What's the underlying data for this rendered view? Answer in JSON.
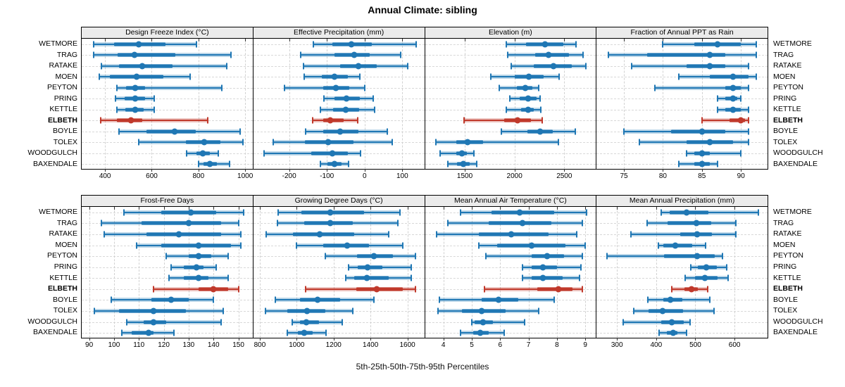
{
  "chart_data": {
    "type": "scatter",
    "subtype": "horizontal-percentile-interval-dotplot",
    "title": "Annual Climate: sibling",
    "caption": "5th-25th-50th-75th-95th Percentiles",
    "legend_note": "each row shows 5th/25th/50th/75th/95th percentiles; thin line = 5-95, thick bar = 25-75, dot = median",
    "sites_top_to_bottom": [
      "WETMORE",
      "TRAG",
      "RATAKE",
      "MOEN",
      "PEYTON",
      "PRING",
      "KETTLE",
      "ELBETH",
      "BOYLE",
      "TOLEX",
      "WOODGULCH",
      "BAXENDALE"
    ],
    "highlight_site": "ELBETH",
    "colors": {
      "series": "#1f77b4",
      "highlight": "#c0392b",
      "strip_bg": "#ebebeb",
      "gridline": "#d4d4d4",
      "panel_border": "#000000"
    },
    "grid": "dashed horizontal and vertical gridlines",
    "layout": "2 rows x 4 columns of panels, site labels on both left and right sides",
    "panels": [
      {
        "title": "Design Freeze Index (°C)",
        "xlim": [
          300,
          1035
        ],
        "ticks": [
          400,
          600,
          800,
          1000
        ],
        "values": [
          [
            350,
            440,
            545,
            660,
            790
          ],
          [
            350,
            455,
            525,
            700,
            940
          ],
          [
            385,
            460,
            560,
            690,
            920
          ],
          [
            375,
            420,
            535,
            650,
            765
          ],
          [
            450,
            490,
            530,
            570,
            900
          ],
          [
            445,
            485,
            530,
            570,
            610
          ],
          [
            450,
            487,
            530,
            565,
            612
          ],
          [
            380,
            450,
            510,
            560,
            840
          ],
          [
            460,
            577,
            697,
            788,
            977
          ],
          [
            545,
            745,
            825,
            895,
            990
          ],
          [
            748,
            793,
            820,
            848,
            885
          ],
          [
            800,
            823,
            848,
            878,
            932
          ]
        ]
      },
      {
        "title": "Effective Precipitation (mm)",
        "xlim": [
          -295,
          160
        ],
        "ticks": [
          -200,
          -100,
          0,
          100
        ],
        "values": [
          [
            -135,
            -86,
            -36,
            19,
            136
          ],
          [
            -170,
            -79,
            -28,
            14,
            95
          ],
          [
            -162,
            -65,
            -17,
            33,
            114
          ],
          [
            -160,
            -114,
            -79,
            -45,
            -12
          ],
          [
            -212,
            -109,
            -77,
            -41,
            0
          ],
          [
            -108,
            -80,
            -48,
            -12,
            22
          ],
          [
            -118,
            -83,
            -50,
            -14,
            27
          ],
          [
            -138,
            -110,
            -91,
            -55,
            -19
          ],
          [
            -157,
            -109,
            -65,
            -16,
            60
          ],
          [
            -243,
            -159,
            -96,
            -30,
            73
          ],
          [
            -267,
            -141,
            -85,
            -44,
            -11
          ],
          [
            -118,
            -98,
            -80,
            -62,
            -42
          ]
        ]
      },
      {
        "title": "Elevation (m)",
        "xlim": [
          1100,
          2825
        ],
        "ticks": [
          1500,
          2000,
          2500
        ],
        "values": [
          [
            1920,
            2115,
            2310,
            2490,
            2620
          ],
          [
            1930,
            2210,
            2340,
            2550,
            2690
          ],
          [
            1965,
            2190,
            2390,
            2575,
            2715
          ],
          [
            1760,
            2000,
            2145,
            2295,
            2445
          ],
          [
            1845,
            2025,
            2105,
            2180,
            2245
          ],
          [
            1955,
            2055,
            2135,
            2220,
            2255
          ],
          [
            1920,
            2065,
            2135,
            2190,
            2265
          ],
          [
            1495,
            1895,
            2030,
            2165,
            2275
          ],
          [
            1870,
            2130,
            2260,
            2385,
            2610
          ],
          [
            1210,
            1415,
            1525,
            1685,
            2440
          ],
          [
            1250,
            1415,
            1470,
            1520,
            1590
          ],
          [
            1330,
            1425,
            1485,
            1550,
            1620
          ]
        ]
      },
      {
        "title": "Fraction of Annual PPT as Rain",
        "xlim": [
          71.5,
          93.5
        ],
        "ticks": [
          75,
          80,
          85,
          90
        ],
        "values": [
          [
            80,
            84,
            87,
            90,
            92
          ],
          [
            73,
            78,
            86,
            88,
            92
          ],
          [
            76,
            83,
            86,
            88,
            91
          ],
          [
            82,
            86,
            89,
            91,
            92
          ],
          [
            79,
            88,
            89,
            90,
            91
          ],
          [
            87,
            88,
            89,
            89.5,
            90
          ],
          [
            87,
            88,
            89,
            90,
            91
          ],
          [
            85,
            88.5,
            90,
            90.5,
            91
          ],
          [
            75,
            81,
            85,
            88,
            91
          ],
          [
            77,
            83,
            86,
            89,
            91
          ],
          [
            83,
            84,
            85,
            86,
            90
          ],
          [
            82,
            84,
            85,
            86,
            87
          ]
        ]
      },
      {
        "title": "Frost-Free Days",
        "xlim": [
          87,
          156
        ],
        "ticks": [
          90,
          100,
          110,
          120,
          130,
          140,
          150
        ],
        "values": [
          [
            104,
            119,
            131,
            141,
            152
          ],
          [
            95,
            111,
            130,
            143,
            150
          ],
          [
            96,
            113,
            126,
            143,
            151
          ],
          [
            109,
            119,
            134,
            147,
            151
          ],
          [
            121,
            130,
            134,
            139,
            146
          ],
          [
            123,
            128,
            133,
            136,
            141
          ],
          [
            122,
            128,
            134,
            138,
            146
          ],
          [
            116,
            134,
            140,
            146,
            150
          ],
          [
            99,
            115,
            123,
            130,
            140
          ],
          [
            92,
            102,
            116,
            129,
            144
          ],
          [
            105,
            112,
            116,
            121,
            143
          ],
          [
            103,
            107,
            114,
            116,
            124
          ]
        ]
      },
      {
        "title": "Growing Degree Days (°C)",
        "xlim": [
          765,
          1695
        ],
        "ticks": [
          800,
          1000,
          1200,
          1400,
          1600
        ],
        "values": [
          [
            900,
            1025,
            1180,
            1365,
            1560
          ],
          [
            895,
            1040,
            1180,
            1305,
            1550
          ],
          [
            835,
            980,
            1125,
            1310,
            1500
          ],
          [
            1000,
            1145,
            1275,
            1390,
            1575
          ],
          [
            1155,
            1325,
            1420,
            1520,
            1645
          ],
          [
            1280,
            1330,
            1385,
            1465,
            1620
          ],
          [
            1265,
            1312,
            1380,
            1500,
            1620
          ],
          [
            1050,
            1323,
            1435,
            1575,
            1645
          ],
          [
            885,
            1017,
            1115,
            1235,
            1420
          ],
          [
            830,
            950,
            1055,
            1155,
            1305
          ],
          [
            975,
            1017,
            1052,
            1120,
            1245
          ],
          [
            950,
            1005,
            1040,
            1085,
            1160
          ]
        ]
      },
      {
        "title": "Mean Annual Air Temperature (°C)",
        "xlim": [
          3.35,
          9.4
        ],
        "ticks": [
          4,
          5,
          6,
          7,
          8,
          9
        ],
        "values": [
          [
            4.6,
            5.7,
            6.7,
            7.9,
            9.05
          ],
          [
            4.15,
            5.6,
            6.8,
            7.8,
            8.9
          ],
          [
            3.75,
            5.25,
            6.4,
            7.7,
            8.7
          ],
          [
            5.25,
            5.9,
            7.1,
            8.3,
            9.0
          ],
          [
            5.5,
            7.1,
            7.65,
            8.25,
            8.9
          ],
          [
            6.8,
            7.1,
            7.5,
            8.0,
            8.85
          ],
          [
            6.8,
            7.1,
            7.5,
            8.2,
            8.8
          ],
          [
            5.45,
            7.3,
            8.05,
            8.55,
            8.9
          ],
          [
            3.85,
            5.35,
            5.95,
            6.65,
            7.9
          ],
          [
            3.8,
            4.65,
            5.35,
            6.2,
            7.35
          ],
          [
            5.0,
            5.1,
            5.4,
            5.75,
            6.85
          ],
          [
            4.6,
            5.05,
            5.3,
            5.6,
            6.15
          ]
        ]
      },
      {
        "title": "Mean Annual Precipitation (mm)",
        "xlim": [
          248,
          686
        ],
        "ticks": [
          300,
          400,
          500,
          600
        ],
        "values": [
          [
            412,
            435,
            478,
            534,
            660
          ],
          [
            377,
            429,
            502,
            541,
            604
          ],
          [
            336,
            462,
            504,
            543,
            603
          ],
          [
            406,
            418,
            448,
            492,
            526
          ],
          [
            275,
            420,
            505,
            550,
            570
          ],
          [
            488,
            507,
            528,
            554,
            580
          ],
          [
            474,
            499,
            524,
            556,
            584
          ],
          [
            439,
            472,
            490,
            506,
            532
          ],
          [
            378,
            418,
            436,
            466,
            537
          ],
          [
            343,
            381,
            417,
            469,
            547
          ],
          [
            315,
            412,
            439,
            470,
            486
          ],
          [
            408,
            427,
            444,
            454,
            477
          ]
        ]
      }
    ]
  }
}
